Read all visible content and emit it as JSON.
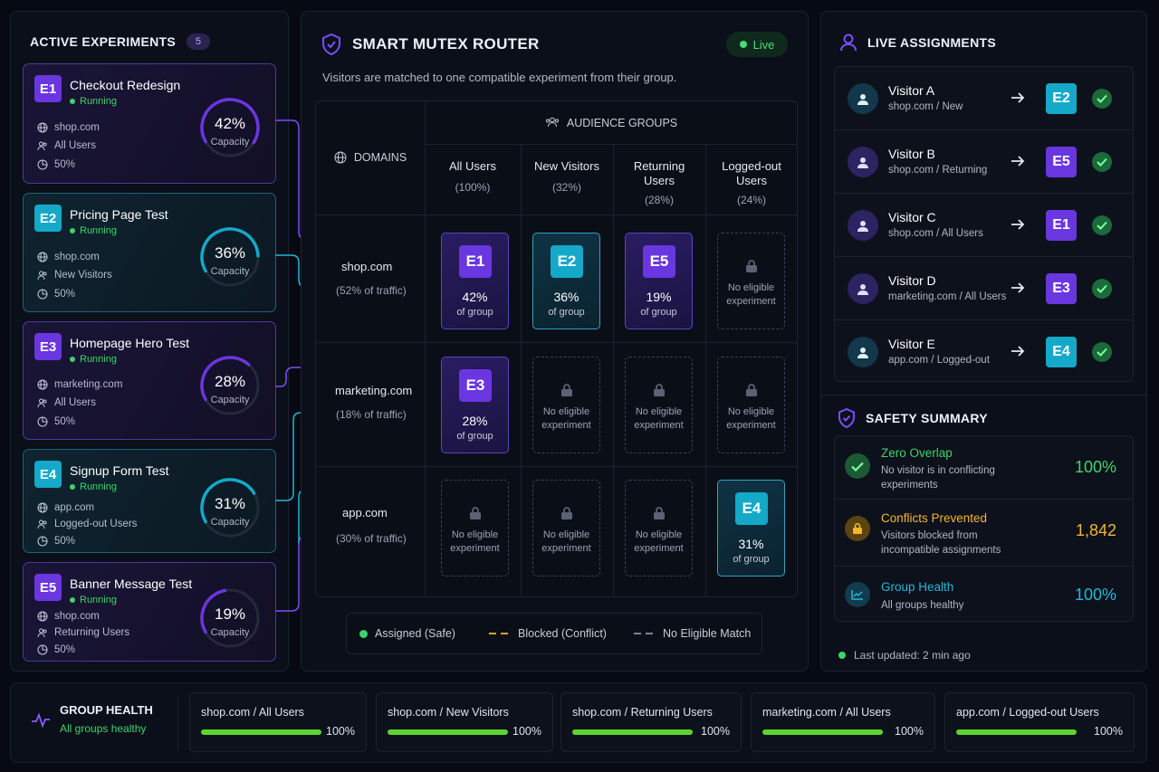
{
  "experiments_panel": {
    "title": "ACTIVE EXPERIMENTS",
    "count": "5",
    "capacity_label": "Capacity",
    "items": [
      {
        "id": "E1",
        "name": "Checkout Redesign",
        "status": "Running",
        "domain": "shop.com",
        "audience": "All Users",
        "split": "50%",
        "capacity": "42%",
        "capacity_value": 42,
        "color": "#6a36e0"
      },
      {
        "id": "E2",
        "name": "Pricing Page Test",
        "status": "Running",
        "domain": "shop.com",
        "audience": "New Visitors",
        "split": "50%",
        "capacity": "36%",
        "capacity_value": 36,
        "color": "#14a9c9"
      },
      {
        "id": "E3",
        "name": "Homepage Hero Test",
        "status": "Running",
        "domain": "marketing.com",
        "audience": "All Users",
        "split": "50%",
        "capacity": "28%",
        "capacity_value": 28,
        "color": "#6a36e0"
      },
      {
        "id": "E4",
        "name": "Signup Form Test",
        "status": "Running",
        "domain": "app.com",
        "audience": "Logged-out Users",
        "split": "50%",
        "capacity": "31%",
        "capacity_value": 31,
        "color": "#14a9c9"
      },
      {
        "id": "E5",
        "name": "Banner Message Test",
        "status": "Running",
        "domain": "shop.com",
        "audience": "Returning Users",
        "split": "50%",
        "capacity": "19%",
        "capacity_value": 19,
        "color": "#6a36e0"
      }
    ]
  },
  "router": {
    "title": "SMART MUTEX ROUTER",
    "live_label": "Live",
    "subtitle": "Visitors are matched to one compatible experiment from their group.",
    "audience_groups_label": "AUDIENCE GROUPS",
    "domains_label": "DOMAINS",
    "groups": [
      {
        "name_line1": "All Users",
        "name_line2": "",
        "share": "(100%)"
      },
      {
        "name_line1": "New Visitors",
        "name_line2": "",
        "share": "(32%)"
      },
      {
        "name_line1": "Returning",
        "name_line2": "Users",
        "share": "(28%)"
      },
      {
        "name_line1": "Logged-out",
        "name_line2": "Users",
        "share": "(24%)"
      }
    ],
    "domains": [
      {
        "name": "shop.com",
        "share": "(52% of traffic)"
      },
      {
        "name": "marketing.com",
        "share": "(18% of traffic)"
      },
      {
        "name": "app.com",
        "share": "(30% of traffic)"
      }
    ],
    "cell_value_label": "of group",
    "no_match_line1": "No eligible",
    "no_match_line2": "experiment",
    "cells": [
      {
        "id": "E1",
        "value": "42%"
      },
      {
        "id": "E2",
        "value": "36%"
      },
      {
        "id": "E5",
        "value": "19%"
      },
      {
        "id": "E3",
        "value": "28%"
      },
      {
        "id": "E4",
        "value": "31%"
      }
    ],
    "legend": {
      "assigned": "Assigned (Safe)",
      "blocked": "Blocked (Conflict)",
      "none": "No Eligible Match"
    }
  },
  "assignments": {
    "title": "LIVE ASSIGNMENTS",
    "items": [
      {
        "visitor": "Visitor A",
        "segment": "shop.com / New",
        "exp": "E2"
      },
      {
        "visitor": "Visitor B",
        "segment": "shop.com / Returning",
        "exp": "E5"
      },
      {
        "visitor": "Visitor C",
        "segment": "shop.com / All Users",
        "exp": "E1"
      },
      {
        "visitor": "Visitor D",
        "segment": "marketing.com / All Users",
        "exp": "E3"
      },
      {
        "visitor": "Visitor E",
        "segment": "app.com / Logged-out",
        "exp": "E4"
      }
    ]
  },
  "safety": {
    "title": "SAFETY SUMMARY",
    "items": [
      {
        "title": "Zero Overlap",
        "desc": "No visitor is in conflicting experiments",
        "value": "100%",
        "color": "#3ed36a"
      },
      {
        "title": "Conflicts Prevented",
        "desc": "Visitors blocked from incompatible assignments",
        "value": "1,842",
        "color": "#f2b632"
      },
      {
        "title": "Group Health",
        "desc": "All groups healthy",
        "value": "100%",
        "color": "#22b8d8"
      }
    ],
    "last_updated": "Last updated: 2 min ago"
  },
  "group_health": {
    "title": "GROUP HEALTH",
    "status": "All groups healthy",
    "items": [
      {
        "name": "shop.com / All Users",
        "value": "100%",
        "level": 100
      },
      {
        "name": "shop.com / New Visitors",
        "value": "100%",
        "level": 100
      },
      {
        "name": "shop.com / Returning Users",
        "value": "100%",
        "level": 100
      },
      {
        "name": "marketing.com / All Users",
        "value": "100%",
        "level": 100
      },
      {
        "name": "app.com / Logged-out Users",
        "value": "100%",
        "level": 100
      }
    ]
  }
}
